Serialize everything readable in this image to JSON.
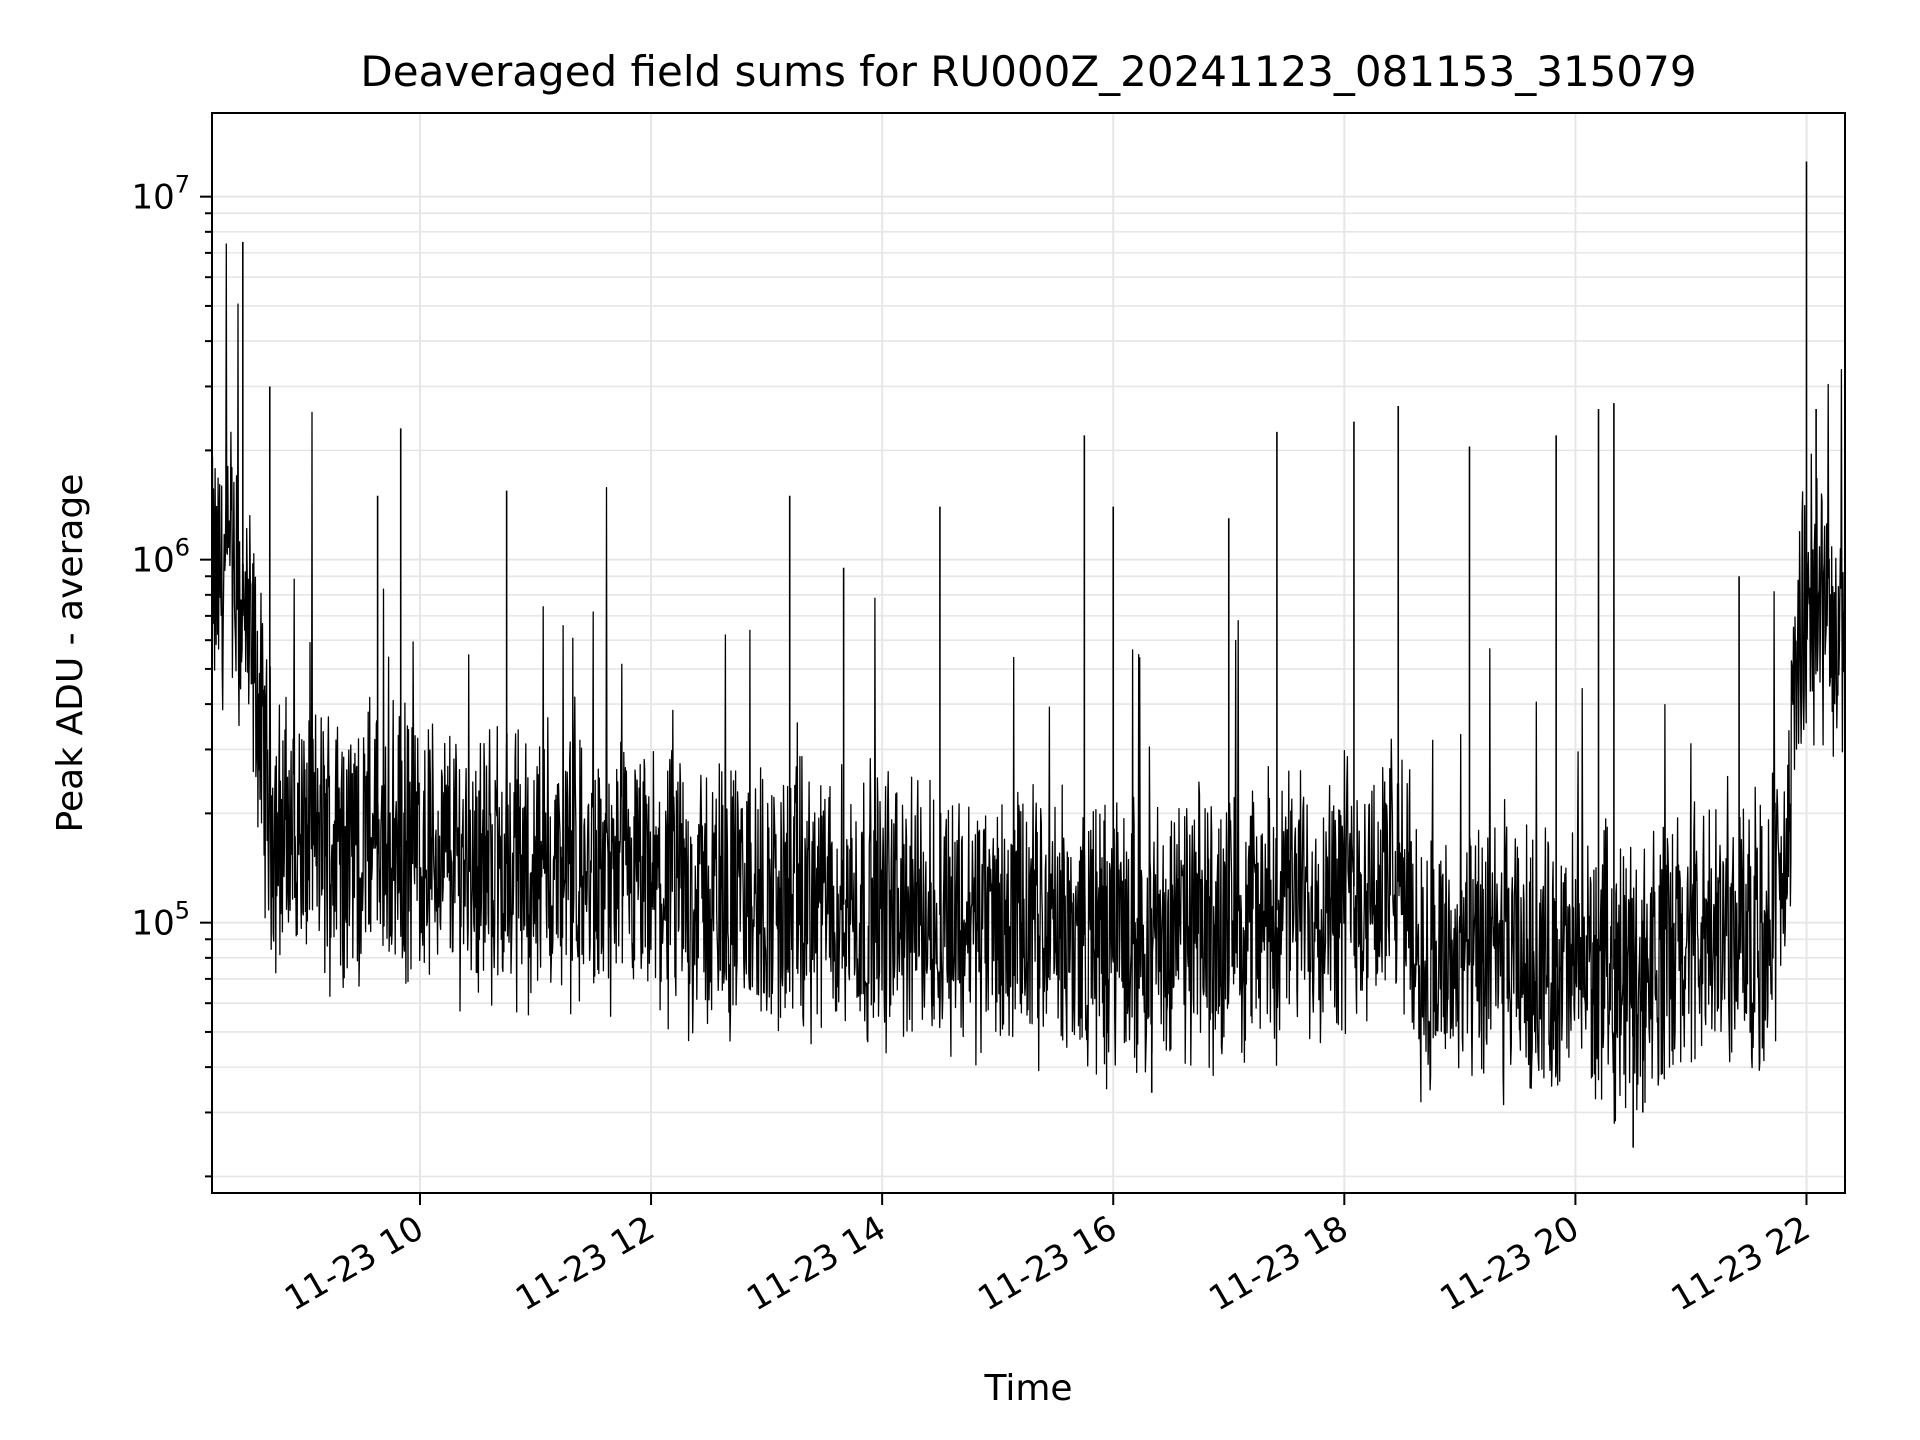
{
  "chart_data": {
    "type": "line",
    "title": "Deaveraged field sums for RU000Z_20241123_081153_315079",
    "xlabel": "Time",
    "ylabel": "Peak ADU - average",
    "yscale": "log",
    "grid": true,
    "grid_minor": true,
    "line_color": "#000000",
    "grid_color": "#e6e6e6",
    "xlim": [
      "2024-11-23 08:12",
      "2024-11-23 22:20"
    ],
    "ylim": [
      18000,
      17000000
    ],
    "x_ticks": [
      {
        "value": "2024-11-23 10:00",
        "label": "11-23 10"
      },
      {
        "value": "2024-11-23 12:00",
        "label": "11-23 12"
      },
      {
        "value": "2024-11-23 14:00",
        "label": "11-23 14"
      },
      {
        "value": "2024-11-23 16:00",
        "label": "11-23 16"
      },
      {
        "value": "2024-11-23 18:00",
        "label": "11-23 18"
      },
      {
        "value": "2024-11-23 20:00",
        "label": "11-23 20"
      },
      {
        "value": "2024-11-23 22:00",
        "label": "11-23 22"
      }
    ],
    "y_ticks": [
      {
        "value": 100000,
        "base": "10",
        "exp": "5"
      },
      {
        "value": 1000000,
        "base": "10",
        "exp": "6"
      },
      {
        "value": 10000000,
        "base": "10",
        "exp": "7"
      }
    ],
    "series": [
      {
        "x": [
          "2024-11-23 08:12",
          "2024-11-23 08:20",
          "2024-11-23 08:28",
          "2024-11-23 08:35",
          "2024-11-23 08:40",
          "2024-11-23 08:45",
          "2024-11-23 09:00",
          "2024-11-23 09:30",
          "2024-11-23 10:00",
          "2024-11-23 10:30",
          "2024-11-23 11:00",
          "2024-11-23 11:30",
          "2024-11-23 12:00",
          "2024-11-23 12:30",
          "2024-11-23 13:00",
          "2024-11-23 13:30",
          "2024-11-23 14:00",
          "2024-11-23 14:30",
          "2024-11-23 15:00",
          "2024-11-23 15:30",
          "2024-11-23 16:00",
          "2024-11-23 16:30",
          "2024-11-23 17:00",
          "2024-11-23 17:30",
          "2024-11-23 18:00",
          "2024-11-23 18:30",
          "2024-11-23 18:40",
          "2024-11-23 19:00",
          "2024-11-23 19:30",
          "2024-11-23 20:00",
          "2024-11-23 20:30",
          "2024-11-23 21:00",
          "2024-11-23 21:30",
          "2024-11-23 21:48",
          "2024-11-23 21:55",
          "2024-11-23 22:00",
          "2024-11-23 22:10",
          "2024-11-23 22:20"
        ],
        "y": [
          850000,
          900000,
          700000,
          450000,
          250000,
          180000,
          170000,
          165000,
          160000,
          150000,
          140000,
          130000,
          122000,
          118000,
          115000,
          113000,
          110000,
          105000,
          100000,
          95000,
          90000,
          92000,
          100000,
          110000,
          125000,
          130000,
          80000,
          78000,
          76000,
          75000,
          74000,
          85000,
          95000,
          110000,
          500000,
          800000,
          700000,
          650000
        ]
      }
    ],
    "spikes": [
      {
        "x": "2024-11-23 08:28",
        "y": 7500000
      },
      {
        "x": "2024-11-23 08:42",
        "y": 3000000
      },
      {
        "x": "2024-11-23 09:50",
        "y": 2300000
      },
      {
        "x": "2024-11-23 09:38",
        "y": 1500000
      },
      {
        "x": "2024-11-23 10:45",
        "y": 1550000
      },
      {
        "x": "2024-11-23 13:12",
        "y": 1500000
      },
      {
        "x": "2024-11-23 13:40",
        "y": 950000
      },
      {
        "x": "2024-11-23 14:30",
        "y": 1400000
      },
      {
        "x": "2024-11-23 15:45",
        "y": 2200000
      },
      {
        "x": "2024-11-23 16:00",
        "y": 1400000
      },
      {
        "x": "2024-11-23 17:00",
        "y": 1300000
      },
      {
        "x": "2024-11-23 17:25",
        "y": 2250000
      },
      {
        "x": "2024-11-23 18:05",
        "y": 2400000
      },
      {
        "x": "2024-11-23 18:28",
        "y": 2650000
      },
      {
        "x": "2024-11-23 19:05",
        "y": 2050000
      },
      {
        "x": "2024-11-23 19:50",
        "y": 2200000
      },
      {
        "x": "2024-11-23 20:12",
        "y": 2600000
      },
      {
        "x": "2024-11-23 20:20",
        "y": 2700000
      },
      {
        "x": "2024-11-23 21:25",
        "y": 900000
      },
      {
        "x": "2024-11-23 22:00",
        "y": 12500000
      },
      {
        "x": "2024-11-23 22:05",
        "y": 2600000
      }
    ],
    "dips": [
      {
        "x": "2024-11-23 16:20",
        "y": 34000
      },
      {
        "x": "2024-11-23 20:30",
        "y": 24000
      },
      {
        "x": "2024-11-23 20:35",
        "y": 30000
      }
    ]
  }
}
